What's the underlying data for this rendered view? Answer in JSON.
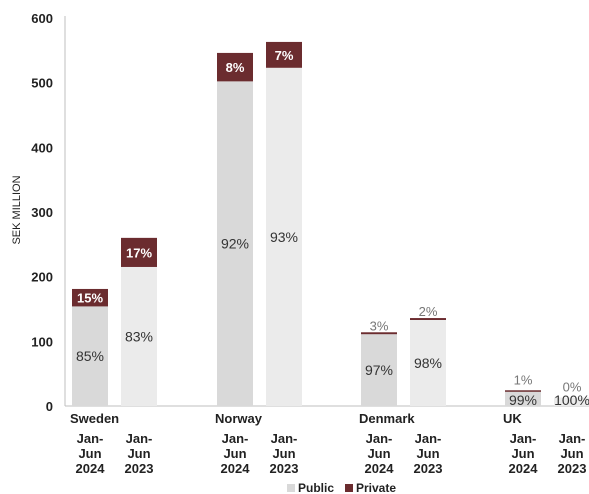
{
  "chart_data": {
    "type": "bar",
    "stacked": true,
    "ylabel": "SEK MILLION",
    "ylim": [
      0,
      600
    ],
    "yticks": [
      0,
      100,
      200,
      300,
      400,
      500,
      600
    ],
    "grid": false,
    "legend_position": "bottom",
    "colors": {
      "Public": "#d9d9d9",
      "Public_2023": "#ebebeb",
      "Private": "#6b2c2f"
    },
    "series": [
      {
        "name": "Public"
      },
      {
        "name": "Private"
      }
    ],
    "groups": [
      {
        "name": "Sweden",
        "bars": [
          {
            "period": [
              "Jan-",
              "Jun",
              "2024"
            ],
            "public": 154,
            "private": 27,
            "public_label": "85%",
            "private_label": "15%"
          },
          {
            "period": [
              "Jan-",
              "Jun",
              "2023"
            ],
            "public": 215,
            "private": 45,
            "public_label": "83%",
            "private_label": "17%"
          }
        ]
      },
      {
        "name": "Norway",
        "bars": [
          {
            "period": [
              "Jan-",
              "Jun",
              "2024"
            ],
            "public": 502,
            "private": 44,
            "public_label": "92%",
            "private_label": "8%"
          },
          {
            "period": [
              "Jan-",
              "Jun",
              "2023"
            ],
            "public": 523,
            "private": 40,
            "public_label": "93%",
            "private_label": "7%"
          }
        ]
      },
      {
        "name": "Denmark",
        "bars": [
          {
            "period": [
              "Jan-",
              "Jun",
              "2024"
            ],
            "public": 111,
            "private": 3,
            "public_label": "97%",
            "private_label": "3%"
          },
          {
            "period": [
              "Jan-",
              "Jun",
              "2023"
            ],
            "public": 133,
            "private": 3,
            "public_label": "98%",
            "private_label": "2%"
          }
        ]
      },
      {
        "name": "UK",
        "bars": [
          {
            "period": [
              "Jan-",
              "Jun",
              "2024"
            ],
            "public": 24,
            "private": 0.3,
            "public_label": "99%",
            "private_label": "1%"
          },
          {
            "period": [
              "Jan-",
              "Jun",
              "2023"
            ],
            "public": 13,
            "private": 0,
            "public_label": "100%",
            "private_label": "0%"
          }
        ]
      }
    ]
  }
}
